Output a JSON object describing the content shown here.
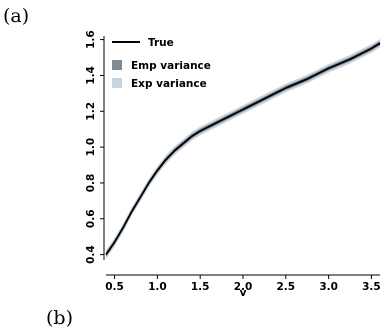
{
  "panel_labels": {
    "a": "(a)",
    "b": "(b)"
  },
  "colors": {
    "true_line": "#000000",
    "emp_variance": "#7f8a94",
    "exp_variance": "#c9d4de"
  },
  "chart_data": {
    "type": "line",
    "title": "",
    "xlabel": "v",
    "ylabel": "",
    "xlim": [
      0.4,
      3.6
    ],
    "ylim": [
      0.37,
      1.62
    ],
    "x_ticks": [
      0.5,
      1.0,
      1.5,
      2.0,
      2.5,
      3.0,
      3.5
    ],
    "x_tick_labels": [
      "0.5",
      "1.0",
      "1.5",
      "2.0",
      "2.5",
      "3.0",
      "3.5"
    ],
    "y_ticks": [
      0.4,
      0.6,
      0.8,
      1.0,
      1.2,
      1.4,
      1.6
    ],
    "y_tick_labels": [
      "0.4",
      "0.6",
      "0.8",
      "1.0",
      "1.2",
      "1.4",
      "1.6"
    ],
    "grid": false,
    "legend_position": "top-left",
    "series": [
      {
        "name": "True",
        "x": [
          0.4,
          0.5,
          0.6,
          0.7,
          0.8,
          0.9,
          1.0,
          1.1,
          1.2,
          1.3,
          1.4,
          1.5,
          1.75,
          2.0,
          2.25,
          2.5,
          2.75,
          3.0,
          3.25,
          3.5,
          3.6
        ],
        "y": [
          0.4,
          0.47,
          0.55,
          0.64,
          0.72,
          0.8,
          0.87,
          0.93,
          0.98,
          1.02,
          1.06,
          1.09,
          1.15,
          1.21,
          1.27,
          1.33,
          1.38,
          1.44,
          1.49,
          1.55,
          1.58
        ]
      },
      {
        "name": "Emp variance",
        "band_halfwidth": 0.012
      },
      {
        "name": "Exp variance",
        "band_halfwidth": 0.024
      }
    ]
  }
}
